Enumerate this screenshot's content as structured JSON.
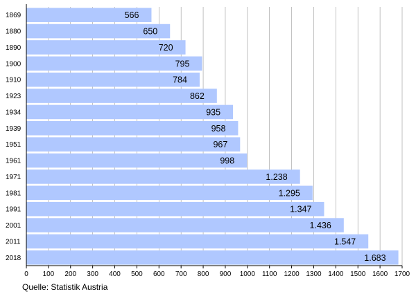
{
  "chart_data": {
    "type": "bar",
    "orientation": "horizontal",
    "categories": [
      "1869",
      "1880",
      "1890",
      "1900",
      "1910",
      "1923",
      "1934",
      "1939",
      "1951",
      "1961",
      "1971",
      "1981",
      "1991",
      "2001",
      "2011",
      "2018"
    ],
    "values": [
      566,
      650,
      720,
      795,
      784,
      862,
      935,
      958,
      967,
      998,
      1238,
      1295,
      1347,
      1436,
      1547,
      1683
    ],
    "data_labels": [
      "566",
      "650",
      "720",
      "795",
      "784",
      "862",
      "935",
      "958",
      "967",
      "998",
      "1.238",
      "1.295",
      "1.347",
      "1.436",
      "1.547",
      "1.683"
    ],
    "x_ticks": [
      0,
      100,
      200,
      300,
      400,
      500,
      600,
      700,
      800,
      900,
      1000,
      1100,
      1200,
      1300,
      1400,
      1500,
      1600,
      1700
    ],
    "xlim": [
      0,
      1700
    ],
    "grid": "vertical",
    "bar_color": "#b0c8ff",
    "grid_color": "#999999",
    "title": "",
    "xlabel": "",
    "ylabel": ""
  },
  "source": "Quelle: Statistik Austria"
}
